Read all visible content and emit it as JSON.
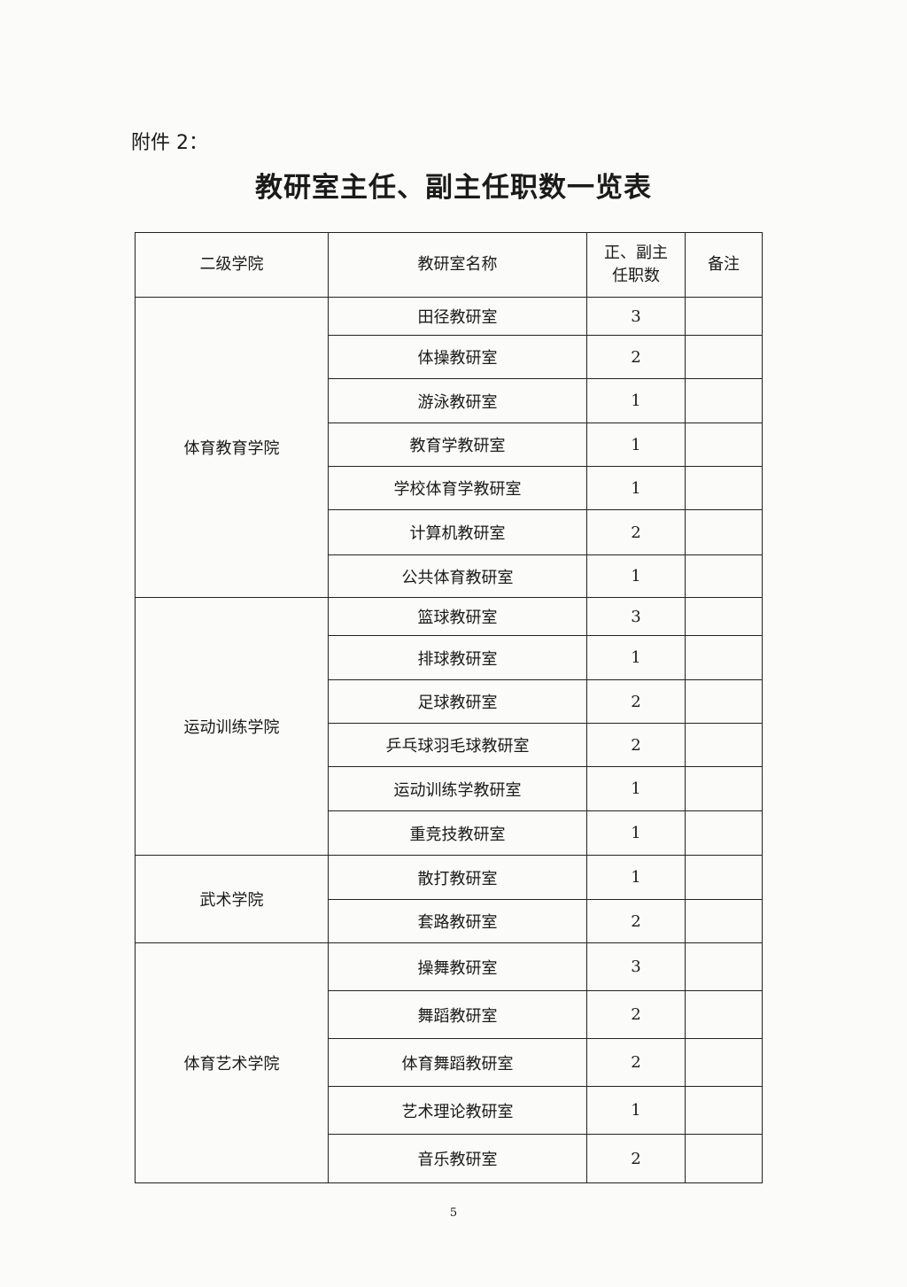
{
  "attachment_label": "附件 2：",
  "title": "教研室主任、副主任职数一览表",
  "table": {
    "headers": {
      "college": "二级学院",
      "office": "教研室名称",
      "count": "正、副主任职数",
      "note": "备注"
    },
    "groups": [
      {
        "college": "体育教育学院",
        "rows": [
          {
            "office": "田径教研室",
            "count": "3",
            "note": ""
          },
          {
            "office": "体操教研室",
            "count": "2",
            "note": ""
          },
          {
            "office": "游泳教研室",
            "count": "1",
            "note": ""
          },
          {
            "office": "教育学教研室",
            "count": "1",
            "note": ""
          },
          {
            "office": "学校体育学教研室",
            "count": "1",
            "note": ""
          },
          {
            "office": "计算机教研室",
            "count": "2",
            "note": ""
          },
          {
            "office": "公共体育教研室",
            "count": "1",
            "note": ""
          }
        ]
      },
      {
        "college": "运动训练学院",
        "rows": [
          {
            "office": "篮球教研室",
            "count": "3",
            "note": ""
          },
          {
            "office": "排球教研室",
            "count": "1",
            "note": ""
          },
          {
            "office": "足球教研室",
            "count": "2",
            "note": ""
          },
          {
            "office": "乒乓球羽毛球教研室",
            "count": "2",
            "note": ""
          },
          {
            "office": "运动训练学教研室",
            "count": "1",
            "note": ""
          },
          {
            "office": "重竞技教研室",
            "count": "1",
            "note": ""
          }
        ]
      },
      {
        "college": "武术学院",
        "rows": [
          {
            "office": "散打教研室",
            "count": "1",
            "note": ""
          },
          {
            "office": "套路教研室",
            "count": "2",
            "note": ""
          }
        ]
      },
      {
        "college": "体育艺术学院",
        "rows": [
          {
            "office": "操舞教研室",
            "count": "3",
            "note": ""
          },
          {
            "office": "舞蹈教研室",
            "count": "2",
            "note": ""
          },
          {
            "office": "体育舞蹈教研室",
            "count": "2",
            "note": ""
          },
          {
            "office": "艺术理论教研室",
            "count": "1",
            "note": ""
          },
          {
            "office": "音乐教研室",
            "count": "2",
            "note": ""
          }
        ]
      }
    ]
  },
  "page_number": "5"
}
